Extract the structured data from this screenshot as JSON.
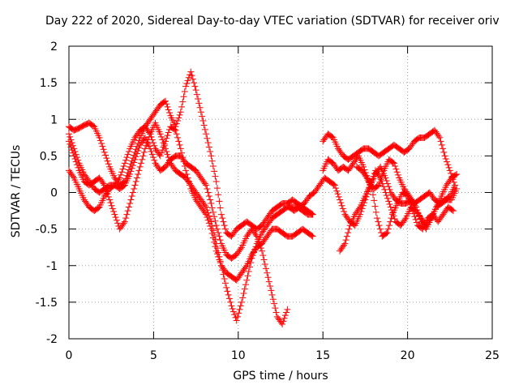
{
  "chart_data": {
    "type": "scatter",
    "title": "Day 222 of 2020, Sidereal Day-to-day VTEC variation (SDTVAR) for receiver oriv",
    "xlabel": "GPS time / hours",
    "ylabel": "SDTVAR / TECUs",
    "xlim": [
      0,
      25
    ],
    "ylim": [
      -2,
      2
    ],
    "xticks": [
      "0",
      "5",
      "10",
      "15",
      "20",
      "25"
    ],
    "yticks": [
      "2",
      "1.5",
      "1",
      "0.5",
      "0",
      "-0.5",
      "-1",
      "-1.5",
      "-2"
    ],
    "grid": true,
    "marker": "+",
    "color": "#ff0000",
    "series": [
      {
        "x": [
          0,
          0.3,
          0.6,
          0.9,
          1.2,
          1.5,
          1.8,
          2.1,
          2.4,
          2.7,
          3.0,
          3.3,
          3.6,
          3.9,
          4.2,
          4.5,
          4.8,
          5.1,
          5.4,
          5.7,
          6.0,
          6.3,
          6.6,
          6.9,
          7.2,
          7.5,
          7.8,
          8.1,
          8.4,
          8.7,
          9.0,
          9.3,
          9.6,
          9.9,
          10.2,
          10.5,
          10.8,
          11.1,
          11.4,
          11.7,
          12.0,
          12.3,
          12.6,
          12.9,
          13.2,
          13.5,
          13.8,
          14.1,
          14.4
        ],
        "y": [
          0.3,
          0.2,
          0.05,
          -0.1,
          -0.2,
          -0.25,
          -0.2,
          -0.05,
          0.05,
          0.1,
          0.2,
          0.4,
          0.6,
          0.75,
          0.85,
          0.9,
          0.8,
          0.6,
          0.5,
          0.7,
          0.9,
          0.85,
          0.6,
          0.3,
          0.05,
          -0.1,
          -0.2,
          -0.3,
          -0.5,
          -0.8,
          -1.0,
          -1.1,
          -1.15,
          -1.2,
          -1.1,
          -1.0,
          -0.85,
          -0.75,
          -0.7,
          -0.6,
          -0.5,
          -0.5,
          -0.55,
          -0.6,
          -0.6,
          -0.55,
          -0.5,
          -0.55,
          -0.6
        ]
      },
      {
        "x": [
          0,
          0.3,
          0.6,
          0.9,
          1.2,
          1.5,
          1.8,
          2.1,
          2.4,
          2.7,
          3.0,
          3.3,
          3.6,
          3.9,
          4.2,
          4.5,
          4.8,
          5.1,
          5.4,
          5.7,
          6.0,
          6.3,
          6.6,
          6.9,
          7.2,
          7.5,
          7.8,
          8.1,
          8.4,
          8.7,
          9.0,
          9.3,
          9.6,
          9.9,
          10.2,
          10.5,
          10.8,
          11.1,
          11.4,
          11.7,
          12.0,
          12.3,
          12.6,
          12.9,
          13.2,
          13.5,
          13.8,
          14.1,
          14.4
        ],
        "y": [
          0.9,
          0.85,
          0.88,
          0.92,
          0.95,
          0.9,
          0.75,
          0.55,
          0.35,
          0.2,
          0.1,
          0.15,
          0.35,
          0.55,
          0.75,
          0.9,
          1.0,
          1.1,
          1.2,
          1.25,
          1.05,
          0.9,
          1.1,
          1.45,
          1.65,
          1.4,
          1.1,
          0.8,
          0.5,
          0.15,
          -0.3,
          -0.55,
          -0.6,
          -0.5,
          -0.45,
          -0.4,
          -0.45,
          -0.5,
          -0.45,
          -0.35,
          -0.25,
          -0.2,
          -0.15,
          -0.15,
          -0.1,
          -0.15,
          -0.2,
          -0.25,
          -0.3
        ]
      },
      {
        "x": [
          0,
          0.3,
          0.6,
          0.9,
          1.2,
          1.5,
          1.8,
          2.1,
          2.4,
          2.7,
          3.0,
          3.3,
          3.6,
          3.9,
          4.2,
          4.5,
          4.8,
          5.1,
          5.4,
          5.7,
          6.0,
          6.3,
          6.6,
          6.9,
          7.2,
          7.5,
          7.8,
          8.1,
          8.4,
          8.7,
          9.0,
          9.3,
          9.6,
          9.9,
          10.2,
          10.5,
          10.8,
          11.1,
          11.4,
          11.7,
          12.0,
          12.3,
          12.6,
          12.9,
          13.2,
          13.5,
          13.8,
          14.1,
          14.4
        ],
        "y": [
          0.7,
          0.5,
          0.3,
          0.15,
          0.1,
          0.15,
          0.2,
          0.1,
          -0.1,
          -0.3,
          -0.5,
          -0.4,
          -0.15,
          0.1,
          0.35,
          0.6,
          0.8,
          0.95,
          0.8,
          0.6,
          0.4,
          0.3,
          0.25,
          0.2,
          0.1,
          0.0,
          -0.1,
          -0.2,
          -0.4,
          -0.7,
          -1.0,
          -1.3,
          -1.55,
          -1.75,
          -1.5,
          -1.2,
          -0.9,
          -0.7,
          -0.55,
          -0.45,
          -0.35,
          -0.3,
          -0.25,
          -0.2,
          -0.2,
          -0.2,
          -0.25,
          -0.3,
          -0.3
        ]
      },
      {
        "x": [
          0,
          0.3,
          0.6,
          0.9,
          1.2,
          1.5,
          1.8,
          2.1,
          2.4,
          2.7,
          3.0,
          3.3,
          3.6,
          3.9,
          4.2,
          4.5,
          4.8,
          5.1,
          5.4,
          5.7,
          6.0,
          6.3,
          6.6,
          6.9,
          7.2,
          7.5,
          7.8,
          8.1,
          8.4,
          8.7,
          9.0,
          9.3,
          9.6,
          9.9,
          10.2,
          10.5,
          10.8,
          11.1,
          11.4,
          11.7,
          12.0,
          12.3,
          12.6,
          12.9
        ],
        "y": [
          0.8,
          0.6,
          0.4,
          0.25,
          0.15,
          0.05,
          0.0,
          0.05,
          0.1,
          0.1,
          0.05,
          0.1,
          0.25,
          0.45,
          0.65,
          0.75,
          0.6,
          0.4,
          0.3,
          0.35,
          0.45,
          0.5,
          0.5,
          0.4,
          0.35,
          0.3,
          0.2,
          0.1,
          -0.15,
          -0.45,
          -0.7,
          -0.85,
          -0.9,
          -0.85,
          -0.75,
          -0.6,
          -0.5,
          -0.6,
          -0.8,
          -1.1,
          -1.4,
          -1.7,
          -1.8,
          -1.6
        ]
      },
      {
        "x": [
          15.0,
          15.3,
          15.6,
          15.9,
          16.2,
          16.5,
          16.8,
          17.1,
          17.4,
          17.7,
          18.0,
          18.3,
          18.6,
          18.9,
          19.2,
          19.5,
          19.8,
          20.1,
          20.4,
          20.7,
          21.0,
          21.3,
          21.6,
          21.9,
          22.2,
          22.5,
          22.8
        ],
        "y": [
          0.7,
          0.8,
          0.75,
          0.6,
          0.5,
          0.45,
          0.5,
          0.55,
          0.6,
          0.6,
          0.55,
          0.5,
          0.55,
          0.6,
          0.65,
          0.6,
          0.55,
          0.6,
          0.7,
          0.75,
          0.75,
          0.8,
          0.85,
          0.75,
          0.5,
          0.3,
          0.1
        ]
      },
      {
        "x": [
          15.0,
          15.3,
          15.6,
          15.9,
          16.2,
          16.5,
          16.8,
          17.1,
          17.4,
          17.7,
          18.0,
          18.3,
          18.6,
          18.9,
          19.2,
          19.5,
          19.8,
          20.1,
          20.4,
          20.7,
          21.0,
          21.3,
          21.6,
          21.9,
          22.2,
          22.5,
          22.8
        ],
        "y": [
          0.3,
          0.45,
          0.4,
          0.3,
          0.35,
          0.3,
          0.4,
          0.5,
          0.35,
          0.15,
          0.05,
          0.1,
          0.3,
          0.45,
          0.4,
          0.2,
          0.05,
          -0.05,
          -0.15,
          -0.1,
          -0.05,
          0.0,
          -0.1,
          -0.15,
          -0.1,
          -0.05,
          0.1
        ]
      },
      {
        "x": [
          13.0,
          13.3,
          13.6,
          13.9,
          14.2,
          14.5,
          14.8,
          15.1,
          15.4,
          15.7,
          16.0,
          16.3,
          16.6,
          16.9,
          17.2,
          17.5,
          17.8,
          18.1,
          18.4,
          18.7,
          19.0,
          19.3,
          19.6,
          19.9,
          20.2,
          20.5,
          20.8,
          21.1,
          21.4,
          21.7,
          22.0,
          22.3,
          22.6,
          22.9
        ],
        "y": [
          -0.2,
          -0.25,
          -0.2,
          -0.15,
          -0.05,
          0.0,
          0.1,
          0.2,
          0.15,
          0.1,
          -0.1,
          -0.3,
          -0.4,
          -0.45,
          -0.3,
          -0.1,
          0.1,
          0.3,
          0.2,
          0.0,
          -0.2,
          -0.4,
          -0.45,
          -0.35,
          -0.2,
          -0.25,
          -0.35,
          -0.45,
          -0.35,
          -0.2,
          -0.15,
          -0.1,
          -0.1,
          0.05
        ]
      },
      {
        "x": [
          16.0,
          16.3,
          16.6,
          16.9,
          17.2,
          17.5,
          17.8,
          18.1,
          18.4,
          18.7,
          19.0,
          19.3,
          19.6,
          19.9,
          20.2,
          20.5,
          20.8,
          21.1,
          21.4,
          21.7,
          22.0,
          22.3,
          22.6,
          22.9
        ],
        "y": [
          -0.8,
          -0.7,
          -0.45,
          -0.3,
          -0.2,
          -0.05,
          0.1,
          0.25,
          0.35,
          0.2,
          0.0,
          -0.1,
          -0.15,
          -0.15,
          -0.1,
          -0.2,
          -0.4,
          -0.5,
          -0.35,
          -0.2,
          -0.05,
          0.1,
          0.2,
          0.25
        ]
      },
      {
        "x": [
          17.0,
          17.3,
          17.6,
          17.9,
          18.2,
          18.5,
          18.8,
          19.1,
          19.4,
          19.7,
          20.0,
          20.3,
          20.6,
          20.9,
          21.2,
          21.5,
          21.8,
          22.1,
          22.4,
          22.7
        ],
        "y": [
          0.35,
          0.3,
          0.2,
          0.05,
          -0.35,
          -0.6,
          -0.55,
          -0.3,
          -0.15,
          0.0,
          -0.05,
          -0.25,
          -0.45,
          -0.5,
          -0.35,
          -0.3,
          -0.4,
          -0.3,
          -0.2,
          -0.25
        ]
      }
    ]
  }
}
